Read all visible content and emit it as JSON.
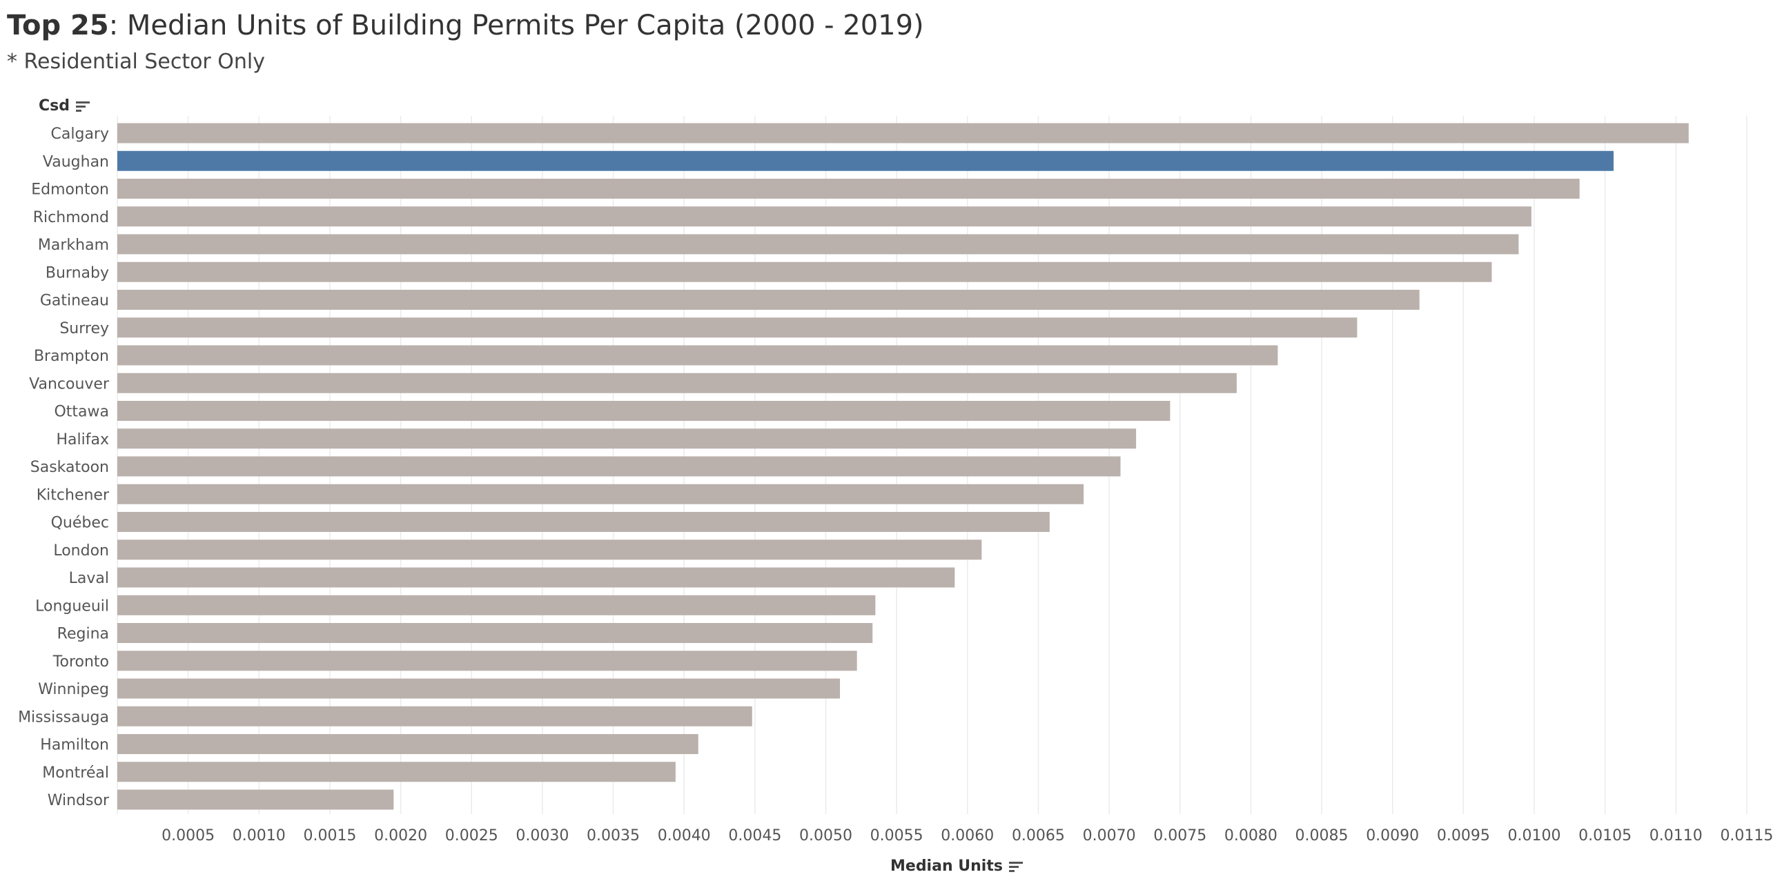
{
  "title": {
    "bold_part": "Top 25",
    "rest": ": Median Units of Building Permits Per Capita (2000 - 2019)"
  },
  "subtitle": "* Residential Sector Only",
  "colors": {
    "bar": "#bab0ac",
    "highlight": "#4e79a7",
    "grid": "#ebebeb",
    "text": "#555555"
  },
  "chart_data": {
    "type": "bar",
    "orientation": "horizontal",
    "title": "Top 25: Median Units of Building Permits Per Capita (2000 - 2019)",
    "ylabel": "Csd",
    "xlabel": "Median Units",
    "xlim": [
      0,
      0.0117
    ],
    "highlighted": "Vaughan",
    "categories": [
      "Calgary",
      "Vaughan",
      "Edmonton",
      "Richmond",
      "Markham",
      "Burnaby",
      "Gatineau",
      "Surrey",
      "Brampton",
      "Vancouver",
      "Ottawa",
      "Halifax",
      "Saskatoon",
      "Kitchener",
      "Québec",
      "London",
      "Laval",
      "Longueuil",
      "Regina",
      "Toronto",
      "Winnipeg",
      "Mississauga",
      "Hamilton",
      "Montréal",
      "Windsor"
    ],
    "values": [
      0.01109,
      0.01056,
      0.01032,
      0.00998,
      0.00989,
      0.0097,
      0.00919,
      0.00875,
      0.00819,
      0.0079,
      0.00743,
      0.00719,
      0.00708,
      0.00682,
      0.00658,
      0.0061,
      0.00591,
      0.00535,
      0.00533,
      0.00522,
      0.0051,
      0.00448,
      0.0041,
      0.00394,
      0.00195
    ],
    "ticks": [
      "0.0005",
      "0.0010",
      "0.0015",
      "0.0020",
      "0.0025",
      "0.0030",
      "0.0035",
      "0.0040",
      "0.0045",
      "0.0050",
      "0.0055",
      "0.0060",
      "0.0065",
      "0.0070",
      "0.0075",
      "0.0080",
      "0.0085",
      "0.0090",
      "0.0095",
      "0.0100",
      "0.0105",
      "0.0110",
      "0.0115"
    ]
  }
}
